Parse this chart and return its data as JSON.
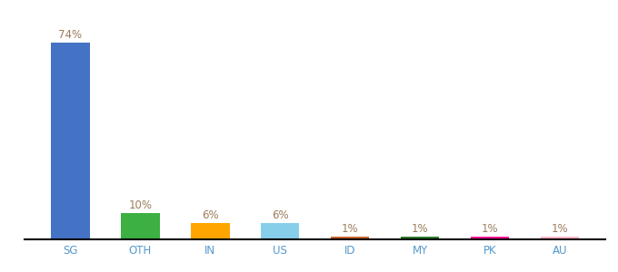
{
  "categories": [
    "SG",
    "OTH",
    "IN",
    "US",
    "ID",
    "MY",
    "PK",
    "AU"
  ],
  "values": [
    74,
    10,
    6,
    6,
    1,
    1,
    1,
    1
  ],
  "bar_colors": [
    "#4472C4",
    "#3CB043",
    "#FFA500",
    "#87CEEB",
    "#C8622A",
    "#2D7A2D",
    "#FF1493",
    "#FFB6C1"
  ],
  "background_color": "#ffffff",
  "ylim": [
    0,
    83
  ],
  "bar_width": 0.55,
  "xlabel_fontsize": 8.5,
  "label_fontsize": 8.5,
  "label_color": "#9B7B5A",
  "tick_color": "#5599CC"
}
